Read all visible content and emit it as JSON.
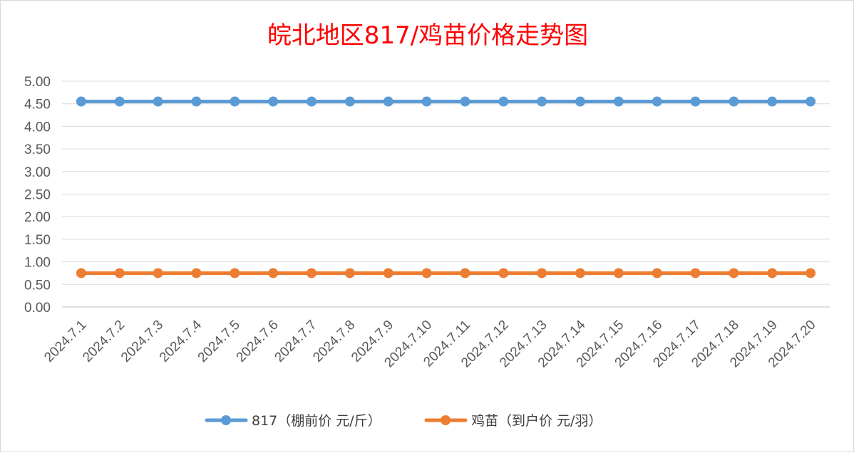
{
  "chart_data": {
    "type": "line",
    "title": "皖北地区817/鸡苗价格走势图",
    "xlabel": "",
    "ylabel": "",
    "ylim": [
      0,
      5
    ],
    "ytick_labels": [
      "0.00",
      "0.50",
      "1.00",
      "1.50",
      "2.00",
      "2.50",
      "3.00",
      "3.50",
      "4.00",
      "4.50",
      "5.00"
    ],
    "categories": [
      "2024.7.1",
      "2024.7.2",
      "2024.7.3",
      "2024.7.4",
      "2024.7.5",
      "2024.7.6",
      "2024.7.7",
      "2024.7.8",
      "2024.7.9",
      "2024.7.10",
      "2024.7.11",
      "2024.7.12",
      "2024.7.13",
      "2024.7.14",
      "2024.7.15",
      "2024.7.16",
      "2024.7.17",
      "2024.7.18",
      "2024.7.19",
      "2024.7.20"
    ],
    "grid": true,
    "legend_position": "bottom",
    "series": [
      {
        "name": "817（棚前价 元/斤）",
        "color": "#5b9bd5",
        "values": [
          4.55,
          4.55,
          4.55,
          4.55,
          4.55,
          4.55,
          4.55,
          4.55,
          4.55,
          4.55,
          4.55,
          4.55,
          4.55,
          4.55,
          4.55,
          4.55,
          4.55,
          4.55,
          4.55,
          4.55
        ]
      },
      {
        "name": "鸡苗（到户价 元/羽）",
        "color": "#ed7d31",
        "values": [
          0.75,
          0.75,
          0.75,
          0.75,
          0.75,
          0.75,
          0.75,
          0.75,
          0.75,
          0.75,
          0.75,
          0.75,
          0.75,
          0.75,
          0.75,
          0.75,
          0.75,
          0.75,
          0.75,
          0.75
        ]
      }
    ]
  }
}
